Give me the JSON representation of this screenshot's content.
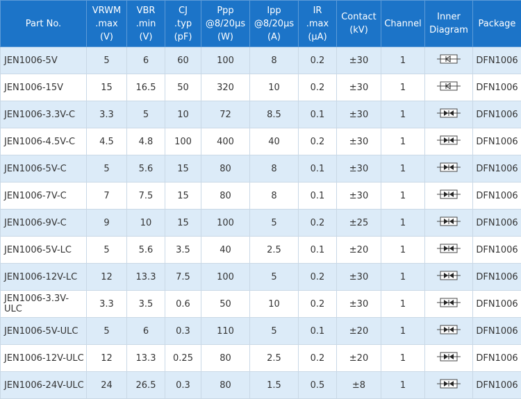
{
  "table": {
    "header": [
      [
        "Part No."
      ],
      [
        "VRWM",
        ".max",
        "(V)"
      ],
      [
        "VBR",
        ".min",
        "(V)"
      ],
      [
        "CJ",
        ".typ",
        "(pF)"
      ],
      [
        "Ppp",
        "@8/20μs",
        "(W)"
      ],
      [
        "Ipp",
        "@8/20μs",
        "(A)"
      ],
      [
        "IR",
        ".max",
        "(μA)"
      ],
      [
        "Contact",
        "(kV)"
      ],
      [
        "Channel"
      ],
      [
        "Inner",
        "Diagram"
      ],
      [
        "Package"
      ]
    ],
    "rows": [
      [
        "JEN1006-5V",
        5,
        6,
        60,
        100,
        8,
        0.2,
        "±30",
        1,
        "DFN1006"
      ],
      [
        "JEN1006-15V",
        15,
        16.5,
        50,
        320,
        10,
        0.2,
        "±30",
        1,
        "DFN1006"
      ],
      [
        "JEN1006-3.3V-C",
        3.3,
        5,
        10,
        72,
        8.5,
        0.1,
        "±30",
        1,
        "DFN1006"
      ],
      [
        "JEN1006-4.5V-C",
        4.5,
        4.8,
        100,
        400,
        40,
        0.2,
        "±30",
        1,
        "DFN1006"
      ],
      [
        "JEN1006-5V-C",
        5,
        5.6,
        15,
        80,
        8,
        0.1,
        "±30",
        1,
        "DFN1006"
      ],
      [
        "JEN1006-7V-C",
        7,
        7.5,
        15,
        80,
        8,
        0.1,
        "±30",
        1,
        "DFN1006"
      ],
      [
        "JEN1006-9V-C",
        9,
        10,
        15,
        100,
        5,
        0.2,
        "±25",
        1,
        "DFN1006"
      ],
      [
        "JEN1006-5V-LC",
        5,
        5.6,
        3.5,
        40,
        2.5,
        0.1,
        "±20",
        1,
        "DFN1006"
      ],
      [
        "JEN1006-12V-LC",
        12,
        13.3,
        7.5,
        100,
        5,
        0.2,
        "±30",
        1,
        "DFN1006"
      ],
      [
        "JEN1006-3.3V-ULC",
        3.3,
        3.5,
        0.6,
        50,
        10,
        0.2,
        "±30",
        1,
        "DFN1006"
      ],
      [
        "JEN1006-5V-ULC",
        5,
        6,
        0.3,
        110,
        5,
        0.1,
        "±20",
        1,
        "DFN1006"
      ],
      [
        "JEN1006-12V-ULC",
        12,
        13.3,
        0.25,
        80,
        2.5,
        0.2,
        "±20",
        1,
        "DFN1006"
      ],
      [
        "JEN1006-24V-ULC",
        24,
        26.5,
        0.3,
        80,
        1.5,
        0.5,
        "±8",
        1,
        "DFN1006"
      ]
    ]
  }
}
